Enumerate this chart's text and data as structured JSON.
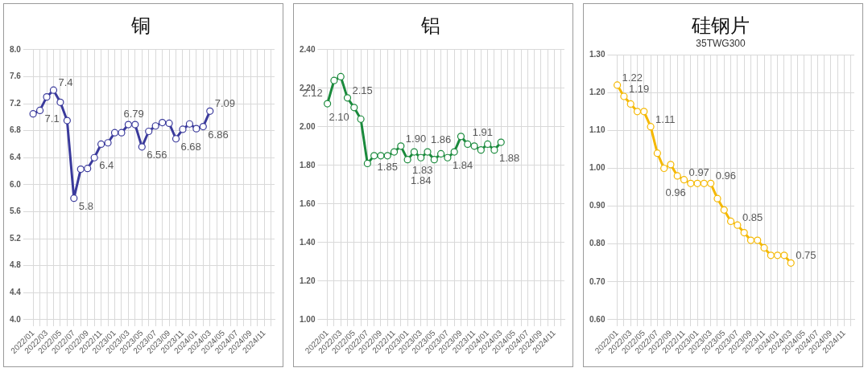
{
  "chart_data": [
    {
      "type": "line",
      "title": "铜",
      "categories": [
        "2022/01",
        null,
        "2022/03",
        null,
        "2022/05",
        null,
        "2022/07",
        null,
        "2022/09",
        null,
        "2022/11",
        null,
        "2023/01",
        null,
        "2023/03",
        null,
        "2023/05",
        null,
        "2023/07",
        null,
        "2023/09",
        null,
        "2023/11",
        null,
        "2024/01",
        null,
        "2024/03",
        null,
        "2024/05",
        null,
        "2024/07",
        null,
        "2024/09",
        null,
        "2024/11",
        null
      ],
      "series": [
        {
          "color": "#3a3a9c",
          "values": [
            7.05,
            7.1,
            7.3,
            7.4,
            7.22,
            6.95,
            5.8,
            6.23,
            6.24,
            6.4,
            6.6,
            6.62,
            6.77,
            6.77,
            6.89,
            6.89,
            6.56,
            6.79,
            6.87,
            6.92,
            6.91,
            6.68,
            6.82,
            6.9,
            6.83,
            6.86,
            7.09,
            null,
            null,
            null,
            null,
            null,
            null,
            null,
            null,
            null
          ],
          "value_labels": [
            null,
            "7.1",
            null,
            "7.4",
            null,
            null,
            "5.8",
            null,
            null,
            "6.4",
            null,
            null,
            null,
            null,
            null,
            null,
            "6.56",
            "6.79",
            null,
            null,
            null,
            "6.68",
            null,
            null,
            null,
            "6.86",
            "7.09",
            null,
            null,
            null,
            null,
            null,
            null,
            null,
            null,
            null
          ]
        }
      ],
      "ylim": [
        4,
        8
      ],
      "yticks": [
        {
          "value": 4,
          "label": "4.0"
        },
        4.4,
        4.8,
        5.2,
        5.6,
        {
          "value": 6,
          "label": "6.0"
        },
        6.4,
        6.8,
        7.2,
        7.6,
        {
          "value": 8,
          "label": "8.0"
        }
      ],
      "grid": true,
      "legend": false,
      "marker": "circle",
      "line_style": "solid"
    },
    {
      "type": "line",
      "title": "铝",
      "categories": [
        "2022/01",
        null,
        "2022/03",
        null,
        "2022/05",
        null,
        "2022/07",
        null,
        "2022/09",
        null,
        "2022/11",
        null,
        "2023/01",
        null,
        "2023/03",
        null,
        "2023/05",
        null,
        "2023/07",
        null,
        "2023/09",
        null,
        "2023/11",
        null,
        "2024/01",
        null,
        "2024/03",
        null,
        "2024/05",
        null,
        "2024/07",
        null,
        "2024/09",
        null,
        "2024/11",
        null
      ],
      "series": [
        {
          "color": "#1a8a3c",
          "values": [
            2.12,
            2.24,
            2.26,
            2.15,
            2.1,
            2.04,
            1.81,
            1.85,
            1.85,
            1.85,
            1.87,
            1.9,
            1.83,
            1.87,
            1.84,
            1.87,
            1.83,
            1.86,
            1.84,
            1.87,
            1.95,
            1.91,
            1.9,
            1.88,
            1.91,
            1.88,
            1.92,
            null,
            null,
            null,
            null,
            null,
            null,
            null,
            null,
            null
          ],
          "value_labels": [
            "2.12",
            null,
            null,
            "2.15",
            "2.10",
            null,
            null,
            null,
            null,
            "1.85",
            null,
            "1.90",
            "1.83",
            null,
            "1.84",
            null,
            null,
            "1.86",
            "1.84",
            null,
            null,
            "1.91",
            null,
            null,
            null,
            "1.88",
            null,
            null,
            null,
            null,
            null,
            null,
            null,
            null,
            null,
            null
          ]
        }
      ],
      "ylim": [
        1,
        2.4
      ],
      "yticks": [
        {
          "value": 1,
          "label": "1.00"
        },
        {
          "value": 1.2,
          "label": "1.20"
        },
        {
          "value": 1.4,
          "label": "1.40"
        },
        {
          "value": 1.6,
          "label": "1.60"
        },
        {
          "value": 1.8,
          "label": "1.80"
        },
        {
          "value": 2,
          "label": "2.00"
        },
        {
          "value": 2.2,
          "label": "2.20"
        },
        {
          "value": 2.4,
          "label": "2.40"
        }
      ],
      "grid": true,
      "legend": false,
      "marker": "circle",
      "line_style": "solid"
    },
    {
      "type": "line",
      "title": "硅钢片",
      "subtitle": "35TWG300",
      "categories": [
        "2022/01",
        null,
        "2022/03",
        null,
        "2022/05",
        null,
        "2022/07",
        null,
        "2022/09",
        null,
        "2022/11",
        null,
        "2023/01",
        null,
        "2023/03",
        null,
        "2023/05",
        null,
        "2023/07",
        null,
        "2023/09",
        null,
        "2023/11",
        null,
        "2024/01",
        null,
        "2024/03",
        null,
        "2024/05",
        null,
        "2024/07",
        null,
        "2024/09",
        null,
        "2024/11",
        null
      ],
      "series": [
        {
          "color": "#f5b800",
          "values": [
            1.22,
            1.19,
            1.17,
            1.15,
            1.15,
            1.11,
            1.04,
            1.0,
            1.01,
            0.98,
            0.97,
            0.96,
            0.96,
            0.96,
            0.96,
            0.92,
            0.89,
            0.86,
            0.85,
            0.83,
            0.81,
            0.81,
            0.79,
            0.77,
            0.77,
            0.77,
            0.75,
            null,
            null,
            null,
            null,
            null,
            null,
            null,
            null,
            null
          ],
          "value_labels": [
            "1.22",
            "1.19",
            null,
            null,
            null,
            "1.11",
            null,
            null,
            null,
            null,
            "0.97",
            "0.96",
            null,
            null,
            "0.96",
            null,
            null,
            null,
            "0.85",
            null,
            null,
            null,
            null,
            null,
            null,
            null,
            "0.75",
            null,
            null,
            null,
            null,
            null,
            null,
            null,
            null,
            null
          ]
        }
      ],
      "ylim": [
        0.6,
        1.3
      ],
      "yticks": [
        {
          "value": 0.6,
          "label": "0.60"
        },
        {
          "value": 0.7,
          "label": "0.70"
        },
        {
          "value": 0.8,
          "label": "0.80"
        },
        {
          "value": 0.9,
          "label": "0.90"
        },
        {
          "value": 1,
          "label": "1.00"
        },
        {
          "value": 1.1,
          "label": "1.10"
        },
        {
          "value": 1.2,
          "label": "1.20"
        },
        {
          "value": 1.3,
          "label": "1.30"
        }
      ],
      "grid": true,
      "legend": false,
      "marker": "circle",
      "line_style": "solid"
    }
  ]
}
